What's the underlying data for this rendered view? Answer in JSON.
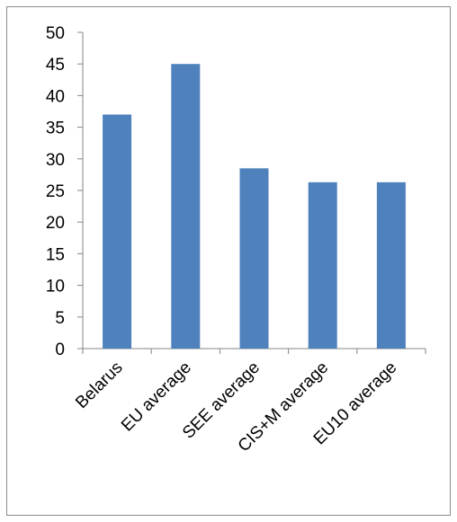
{
  "chart_data": {
    "type": "bar",
    "title": "",
    "xlabel": "",
    "ylabel": "",
    "categories": [
      "Belarus",
      "EU average",
      "SEE average",
      "CIS+M average",
      "EU10 average"
    ],
    "values": [
      37,
      45,
      28.5,
      26.3,
      26.3
    ],
    "ylim": [
      0,
      50
    ],
    "yticks": [
      0,
      5,
      10,
      15,
      20,
      25,
      30,
      35,
      40,
      45,
      50
    ],
    "grid": false,
    "legend": "none",
    "colors": {
      "bar": "#4f81bd",
      "axis": "#868686",
      "text": "#000000",
      "border": "#8c8c8c"
    }
  }
}
